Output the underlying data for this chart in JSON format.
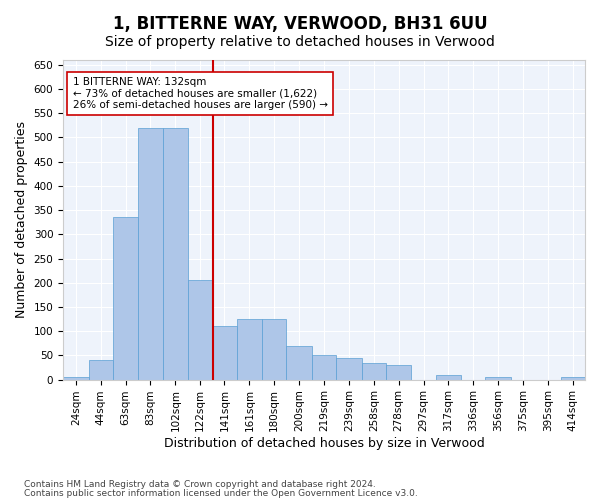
{
  "title": "1, BITTERNE WAY, VERWOOD, BH31 6UU",
  "subtitle": "Size of property relative to detached houses in Verwood",
  "xlabel": "Distribution of detached houses by size in Verwood",
  "ylabel": "Number of detached properties",
  "footnote1": "Contains HM Land Registry data © Crown copyright and database right 2024.",
  "footnote2": "Contains public sector information licensed under the Open Government Licence v3.0.",
  "annotation_line1": "1 BITTERNE WAY: 132sqm",
  "annotation_line2": "← 73% of detached houses are smaller (1,622)",
  "annotation_line3": "26% of semi-detached houses are larger (590) →",
  "bar_color": "#aec6e8",
  "bar_edge_color": "#5a9fd4",
  "vline_color": "#cc0000",
  "vline_x": 132,
  "categories": [
    "24sqm",
    "44sqm",
    "63sqm",
    "83sqm",
    "102sqm",
    "122sqm",
    "141sqm",
    "161sqm",
    "180sqm",
    "200sqm",
    "219sqm",
    "239sqm",
    "258sqm",
    "278sqm",
    "297sqm",
    "317sqm",
    "336sqm",
    "356sqm",
    "375sqm",
    "395sqm",
    "414sqm"
  ],
  "bin_edges": [
    14.5,
    34.5,
    53.5,
    73.5,
    92.5,
    112.5,
    131.5,
    150.5,
    170.5,
    189.5,
    209.5,
    228.5,
    248.5,
    267.5,
    287.5,
    306.5,
    326.5,
    345.5,
    365.5,
    384.5,
    404.5,
    423.5
  ],
  "bar_heights": [
    5,
    40,
    335,
    520,
    520,
    205,
    110,
    125,
    125,
    70,
    50,
    45,
    35,
    30,
    0,
    10,
    0,
    5,
    0,
    0,
    5
  ],
  "ylim": [
    0,
    660
  ],
  "yticks": [
    0,
    50,
    100,
    150,
    200,
    250,
    300,
    350,
    400,
    450,
    500,
    550,
    600,
    650
  ],
  "bg_color": "#eef3fb",
  "title_fontsize": 12,
  "subtitle_fontsize": 10,
  "label_fontsize": 9,
  "tick_fontsize": 7.5
}
